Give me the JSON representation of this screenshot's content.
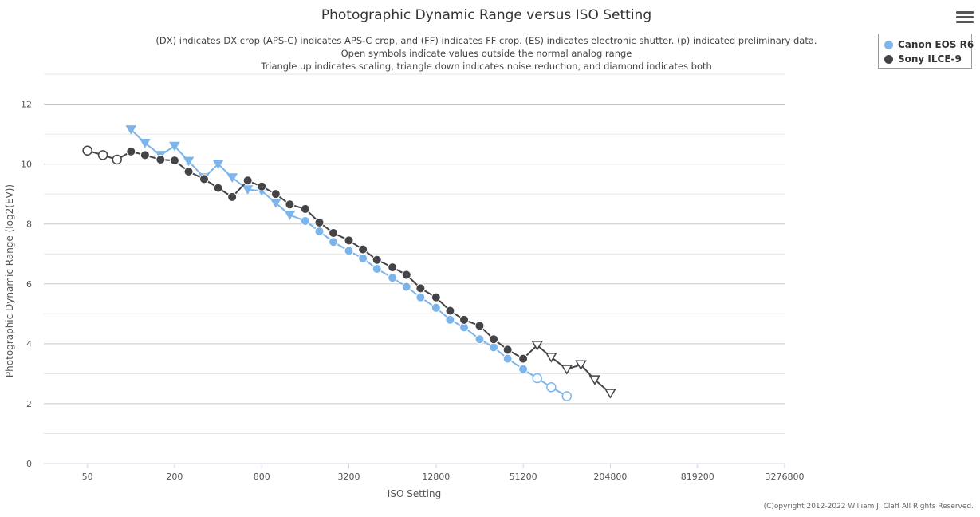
{
  "chart_data": {
    "type": "line",
    "title": "Photographic Dynamic Range versus ISO Setting",
    "subtitle_lines": [
      "(DX) indicates DX crop (APS-C) indicates APS-C crop, and (FF) indicates FF crop. (ES) indicates electronic shutter. (p) indicated preliminary data.",
      "Open symbols indicate values outside the normal analog range",
      "Triangle up indicates scaling, triangle down indicates noise reduction, and diamond indicates both"
    ],
    "xlabel": "ISO Setting",
    "ylabel": "Photographic Dynamic Range (log2(EV))",
    "x_scale": "log2",
    "x_tick_labels": [
      "50",
      "200",
      "800",
      "3200",
      "12800",
      "51200",
      "204800",
      "819200",
      "3276800"
    ],
    "xlim": [
      25,
      3276800
    ],
    "ylim": [
      0,
      12
    ],
    "y_ticks": [
      0,
      2,
      4,
      6,
      8,
      10,
      12
    ],
    "grid": true,
    "legend_position": "top-right",
    "series": [
      {
        "name": "Canon EOS R6",
        "color": "#7cb5ec",
        "points": [
          {
            "x": 100,
            "y": 11.15,
            "marker": "triangle-down"
          },
          {
            "x": 125,
            "y": 10.7,
            "marker": "triangle-down"
          },
          {
            "x": 160,
            "y": 10.3,
            "marker": "triangle-down"
          },
          {
            "x": 200,
            "y": 10.6,
            "marker": "triangle-down"
          },
          {
            "x": 250,
            "y": 10.1,
            "marker": "triangle-down"
          },
          {
            "x": 320,
            "y": 9.55,
            "marker": "triangle-down"
          },
          {
            "x": 400,
            "y": 10.0,
            "marker": "triangle-down"
          },
          {
            "x": 500,
            "y": 9.55,
            "marker": "triangle-down"
          },
          {
            "x": 640,
            "y": 9.15,
            "marker": "triangle-down"
          },
          {
            "x": 800,
            "y": 9.1,
            "marker": "triangle-down"
          },
          {
            "x": 1000,
            "y": 8.7,
            "marker": "triangle-down"
          },
          {
            "x": 1250,
            "y": 8.3,
            "marker": "triangle-down"
          },
          {
            "x": 1600,
            "y": 8.1,
            "marker": "circle"
          },
          {
            "x": 2000,
            "y": 7.75,
            "marker": "circle"
          },
          {
            "x": 2500,
            "y": 7.4,
            "marker": "circle"
          },
          {
            "x": 3200,
            "y": 7.1,
            "marker": "circle"
          },
          {
            "x": 4000,
            "y": 6.85,
            "marker": "circle"
          },
          {
            "x": 5000,
            "y": 6.5,
            "marker": "circle"
          },
          {
            "x": 6400,
            "y": 6.2,
            "marker": "circle"
          },
          {
            "x": 8000,
            "y": 5.9,
            "marker": "circle"
          },
          {
            "x": 10000,
            "y": 5.55,
            "marker": "circle"
          },
          {
            "x": 12800,
            "y": 5.2,
            "marker": "circle"
          },
          {
            "x": 16000,
            "y": 4.8,
            "marker": "circle"
          },
          {
            "x": 20000,
            "y": 4.55,
            "marker": "circle"
          },
          {
            "x": 25600,
            "y": 4.15,
            "marker": "circle"
          },
          {
            "x": 32000,
            "y": 3.88,
            "marker": "circle"
          },
          {
            "x": 40000,
            "y": 3.5,
            "marker": "circle"
          },
          {
            "x": 51200,
            "y": 3.15,
            "marker": "circle"
          },
          {
            "x": 64000,
            "y": 2.85,
            "marker": "circle-open"
          },
          {
            "x": 80000,
            "y": 2.55,
            "marker": "circle-open"
          },
          {
            "x": 102400,
            "y": 2.25,
            "marker": "circle-open"
          }
        ]
      },
      {
        "name": "Sony ILCE-9",
        "color": "#434348",
        "points": [
          {
            "x": 50,
            "y": 10.45,
            "marker": "circle-open"
          },
          {
            "x": 64,
            "y": 10.3,
            "marker": "circle-open"
          },
          {
            "x": 80,
            "y": 10.15,
            "marker": "circle-open"
          },
          {
            "x": 100,
            "y": 10.42,
            "marker": "circle"
          },
          {
            "x": 125,
            "y": 10.3,
            "marker": "circle"
          },
          {
            "x": 160,
            "y": 10.15,
            "marker": "circle"
          },
          {
            "x": 200,
            "y": 10.12,
            "marker": "circle"
          },
          {
            "x": 250,
            "y": 9.75,
            "marker": "circle"
          },
          {
            "x": 320,
            "y": 9.5,
            "marker": "circle"
          },
          {
            "x": 400,
            "y": 9.2,
            "marker": "circle"
          },
          {
            "x": 500,
            "y": 8.9,
            "marker": "circle"
          },
          {
            "x": 640,
            "y": 9.45,
            "marker": "circle"
          },
          {
            "x": 800,
            "y": 9.25,
            "marker": "circle"
          },
          {
            "x": 1000,
            "y": 9.0,
            "marker": "circle"
          },
          {
            "x": 1250,
            "y": 8.65,
            "marker": "circle"
          },
          {
            "x": 1600,
            "y": 8.5,
            "marker": "circle"
          },
          {
            "x": 2000,
            "y": 8.05,
            "marker": "circle"
          },
          {
            "x": 2500,
            "y": 7.7,
            "marker": "circle"
          },
          {
            "x": 3200,
            "y": 7.45,
            "marker": "circle"
          },
          {
            "x": 4000,
            "y": 7.15,
            "marker": "circle"
          },
          {
            "x": 5000,
            "y": 6.8,
            "marker": "circle"
          },
          {
            "x": 6400,
            "y": 6.55,
            "marker": "circle"
          },
          {
            "x": 8000,
            "y": 6.3,
            "marker": "circle"
          },
          {
            "x": 10000,
            "y": 5.85,
            "marker": "circle"
          },
          {
            "x": 12800,
            "y": 5.55,
            "marker": "circle"
          },
          {
            "x": 16000,
            "y": 5.1,
            "marker": "circle"
          },
          {
            "x": 20000,
            "y": 4.8,
            "marker": "circle"
          },
          {
            "x": 25600,
            "y": 4.6,
            "marker": "circle"
          },
          {
            "x": 32000,
            "y": 4.15,
            "marker": "circle"
          },
          {
            "x": 40000,
            "y": 3.8,
            "marker": "circle"
          },
          {
            "x": 51200,
            "y": 3.5,
            "marker": "circle"
          },
          {
            "x": 64000,
            "y": 3.95,
            "marker": "triangle-down-open"
          },
          {
            "x": 80000,
            "y": 3.55,
            "marker": "triangle-down-open"
          },
          {
            "x": 102400,
            "y": 3.15,
            "marker": "triangle-down-open"
          },
          {
            "x": 128000,
            "y": 3.3,
            "marker": "triangle-down-open"
          },
          {
            "x": 160000,
            "y": 2.8,
            "marker": "triangle-down-open"
          },
          {
            "x": 204800,
            "y": 2.35,
            "marker": "triangle-down-open"
          }
        ]
      }
    ]
  },
  "menu": {
    "icon": "hamburger-menu-icon"
  },
  "copyright": "(C)opyright 2012-2022 William J. Claff All Rights Reserved."
}
